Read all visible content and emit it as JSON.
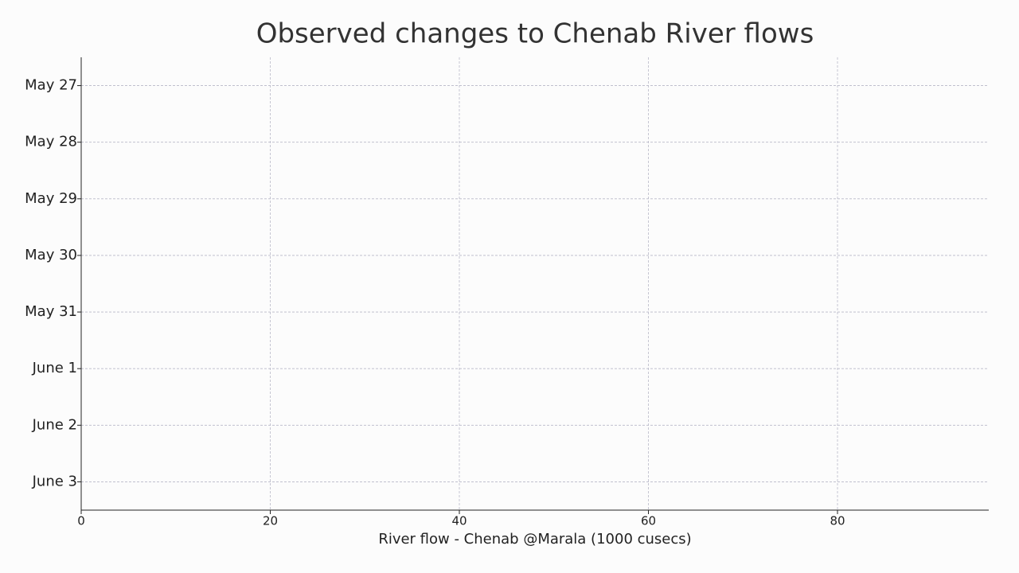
{
  "chart_data": {
    "type": "bar",
    "orientation": "horizontal",
    "title": "Observed changes to Chenab River flows",
    "x_label": "River flow - Chenab @Marala (1000 cusecs)",
    "categories": [
      "May 27",
      "May 28",
      "May 29",
      "May 30",
      "May 31",
      "June 1",
      "June 2",
      "June 3"
    ],
    "xlim": [
      0,
      96
    ],
    "xticks": [
      0,
      20,
      40,
      60,
      80
    ],
    "grid": true
  }
}
